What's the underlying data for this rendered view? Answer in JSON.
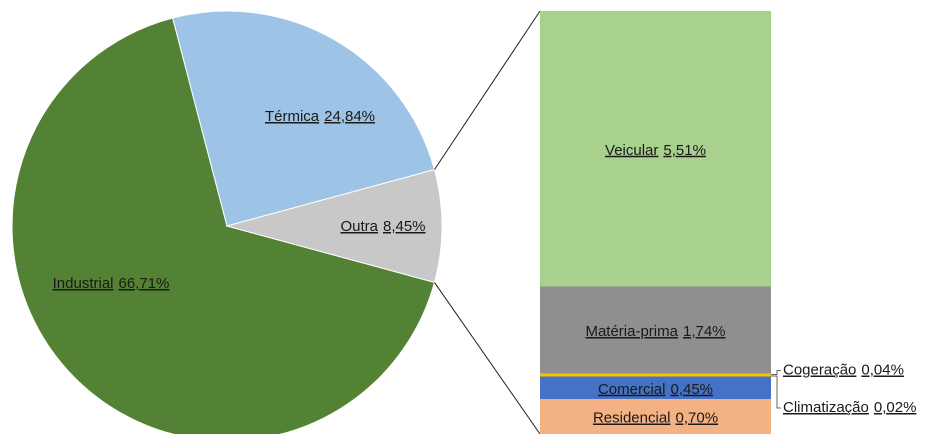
{
  "chart_data": {
    "type": "pie",
    "categories": [
      "Industrial",
      "Térmica",
      "Outra"
    ],
    "values": [
      66.71,
      24.84,
      8.45
    ],
    "value_labels": [
      "66,71%",
      "24,84%",
      "8,45%"
    ],
    "colors": [
      "#548235",
      "#9dc3e6",
      "#c8c8c8"
    ],
    "detail": {
      "categories": [
        "Residencial",
        "Comercial",
        "Climatização",
        "Cogeração",
        "Matéria-prima",
        "Veicular"
      ],
      "values": [
        0.7,
        0.45,
        0.02,
        0.04,
        1.74,
        5.51
      ],
      "value_labels": [
        "0,70%",
        "0,45%",
        "0,02%",
        "0,04%",
        "1,74%",
        "5,51%"
      ],
      "colors": [
        "#f4b183",
        "#4472c4",
        "#ffc000",
        "#ffc000",
        "#8f8f8f",
        "#a9d18e"
      ]
    }
  }
}
